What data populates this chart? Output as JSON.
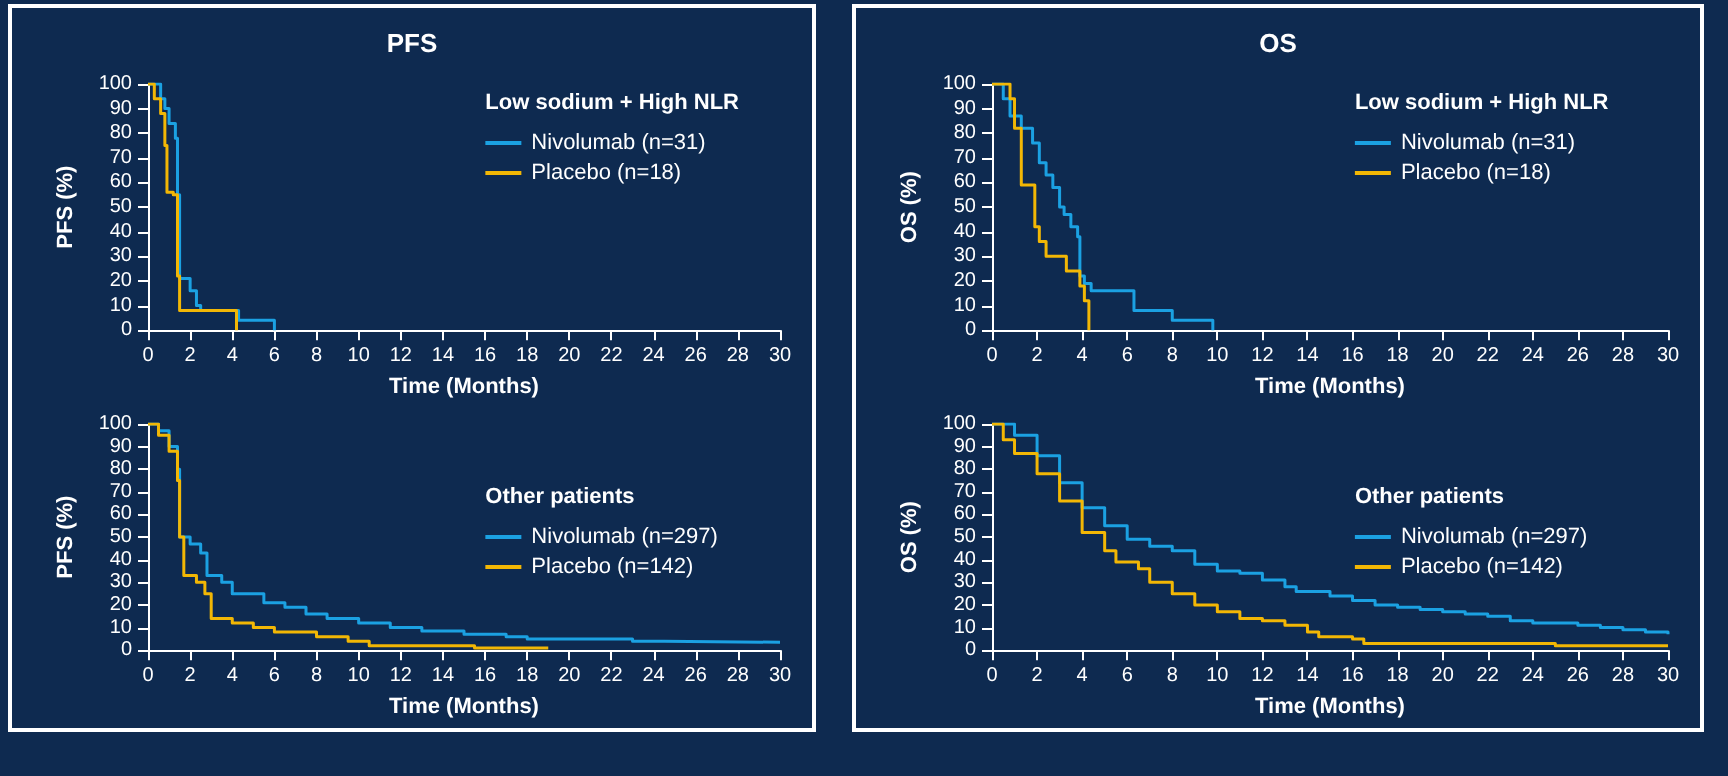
{
  "chart_data": [
    {
      "type": "step",
      "title": "PFS",
      "xlabel": "Time (Months)",
      "ylabel": "PFS (%)",
      "legend_title": "Low sodium + High NLR",
      "legend": "top right",
      "marker": "none",
      "grid": false,
      "xlim": [
        0,
        30
      ],
      "xticks": [
        0,
        2,
        4,
        6,
        8,
        10,
        12,
        14,
        16,
        18,
        20,
        22,
        24,
        26,
        28,
        30
      ],
      "ylim": [
        0,
        100
      ],
      "yticks": [
        0,
        10,
        20,
        30,
        40,
        50,
        60,
        70,
        80,
        90,
        100
      ],
      "series": [
        {
          "name": "Nivolumab (n=31)",
          "color": "#1ba1e2",
          "x": [
            0,
            0.6,
            0.8,
            1.0,
            1.3,
            1.4,
            1.5,
            2.0,
            2.3,
            2.5,
            4.3,
            6.0
          ],
          "values": [
            100,
            94,
            90,
            84,
            78,
            55,
            21,
            16,
            10,
            8,
            4,
            0
          ]
        },
        {
          "name": "Placebo (n=18)",
          "color": "#f2b705",
          "x": [
            0,
            0.3,
            0.6,
            0.8,
            0.9,
            1.2,
            1.4,
            1.5,
            4.2
          ],
          "values": [
            100,
            94,
            88,
            75,
            56,
            55,
            22,
            8,
            0
          ]
        }
      ]
    },
    {
      "type": "step",
      "xlabel": "Time (Months)",
      "ylabel": "PFS (%)",
      "legend_title": "Other patients",
      "legend": "right",
      "marker": "none",
      "grid": false,
      "xlim": [
        0,
        30
      ],
      "xticks": [
        0,
        2,
        4,
        6,
        8,
        10,
        12,
        14,
        16,
        18,
        20,
        22,
        24,
        26,
        28,
        30
      ],
      "ylim": [
        0,
        100
      ],
      "yticks": [
        0,
        10,
        20,
        30,
        40,
        50,
        60,
        70,
        80,
        90,
        100
      ],
      "series": [
        {
          "name": "Nivolumab (n=297)",
          "color": "#1ba1e2",
          "x": [
            0,
            0.5,
            1,
            1.4,
            1.5,
            2,
            2.5,
            2.8,
            3.5,
            4,
            5.5,
            6.5,
            7.5,
            8.5,
            10,
            11.5,
            13,
            15,
            17,
            18,
            23,
            24.5,
            30
          ],
          "values": [
            100,
            97,
            90,
            80,
            50,
            47,
            43,
            33,
            30,
            25,
            21,
            19,
            16,
            14,
            12,
            10,
            8.5,
            7,
            6,
            5,
            4,
            3.5,
            3
          ]
        },
        {
          "name": "Placebo (n=142)",
          "color": "#f2b705",
          "x": [
            0,
            0.5,
            1,
            1.4,
            1.5,
            1.7,
            2.3,
            2.7,
            3,
            4,
            5,
            6,
            8,
            9.5,
            10.5,
            15.5,
            19
          ],
          "values": [
            100,
            95,
            88,
            75,
            50,
            33,
            30,
            25,
            14,
            12,
            10,
            8,
            6,
            4,
            2,
            1,
            1
          ]
        }
      ]
    },
    {
      "type": "step",
      "title": "OS",
      "xlabel": "Time (Months)",
      "ylabel": "OS (%)",
      "legend_title": "Low sodium + High NLR",
      "legend": "top right",
      "marker": "none",
      "grid": false,
      "xlim": [
        0,
        30
      ],
      "xticks": [
        0,
        2,
        4,
        6,
        8,
        10,
        12,
        14,
        16,
        18,
        20,
        22,
        24,
        26,
        28,
        30
      ],
      "ylim": [
        0,
        100
      ],
      "yticks": [
        0,
        10,
        20,
        30,
        40,
        50,
        60,
        70,
        80,
        90,
        100
      ],
      "series": [
        {
          "name": "Nivolumab (n=31)",
          "color": "#1ba1e2",
          "x": [
            0,
            0.5,
            0.8,
            1.3,
            1.8,
            2.1,
            2.4,
            2.7,
            3.0,
            3.2,
            3.5,
            3.8,
            3.9,
            4.1,
            4.4,
            6.3,
            8.0,
            9.8
          ],
          "values": [
            100,
            94,
            87,
            82,
            76,
            68,
            63,
            58,
            50,
            47,
            42,
            38,
            22,
            19,
            16,
            8,
            4,
            0
          ]
        },
        {
          "name": "Placebo (n=18)",
          "color": "#f2b705",
          "x": [
            0,
            0.8,
            1.0,
            1.3,
            1.9,
            2.1,
            2.4,
            3.3,
            3.9,
            4.1,
            4.3
          ],
          "values": [
            100,
            94,
            82,
            59,
            42,
            36,
            30,
            24,
            18,
            12,
            0
          ]
        }
      ]
    },
    {
      "type": "step",
      "xlabel": "Time (Months)",
      "ylabel": "OS (%)",
      "legend_title": "Other patients",
      "legend": "right",
      "marker": "none",
      "grid": false,
      "xlim": [
        0,
        30
      ],
      "xticks": [
        0,
        2,
        4,
        6,
        8,
        10,
        12,
        14,
        16,
        18,
        20,
        22,
        24,
        26,
        28,
        30
      ],
      "ylim": [
        0,
        100
      ],
      "yticks": [
        0,
        10,
        20,
        30,
        40,
        50,
        60,
        70,
        80,
        90,
        100
      ],
      "series": [
        {
          "name": "Nivolumab (n=297)",
          "color": "#1ba1e2",
          "x": [
            0,
            1,
            2,
            3,
            4,
            5,
            6,
            7,
            8,
            9,
            10,
            11,
            12,
            13,
            13.5,
            15,
            16,
            17,
            18,
            19,
            20,
            21,
            22,
            23,
            24,
            26,
            27,
            28,
            29,
            30
          ],
          "values": [
            100,
            95,
            86,
            74,
            63,
            55,
            49,
            46,
            44,
            38,
            35,
            34,
            31,
            28,
            26,
            24,
            22,
            20,
            19,
            18,
            17,
            16,
            15,
            13,
            12,
            11,
            10,
            9,
            8,
            7
          ]
        },
        {
          "name": "Placebo (n=142)",
          "color": "#f2b705",
          "x": [
            0,
            0.5,
            1,
            2,
            3,
            4,
            5,
            5.5,
            6.5,
            7,
            8,
            9,
            10,
            11,
            12,
            13,
            14,
            14.5,
            16,
            16.5,
            24,
            25,
            30
          ],
          "values": [
            100,
            93,
            87,
            78,
            66,
            52,
            44,
            39,
            36,
            30,
            25,
            20,
            17,
            14,
            13,
            11,
            8,
            6,
            5,
            3,
            3,
            2,
            2
          ]
        }
      ]
    }
  ]
}
